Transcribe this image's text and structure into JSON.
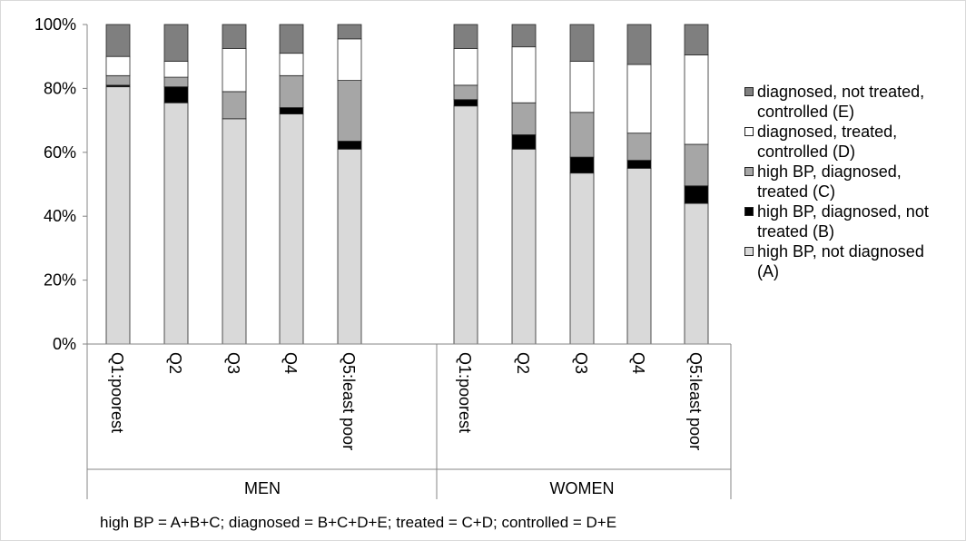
{
  "chart_data": {
    "type": "bar",
    "stacked": true,
    "percent": true,
    "ylim": [
      0,
      100
    ],
    "yticks": [
      "0%",
      "20%",
      "40%",
      "60%",
      "80%",
      "100%"
    ],
    "groups": [
      {
        "name": "MEN",
        "categories": [
          "Q1:poorest",
          "Q2",
          "Q3",
          "Q4",
          "Q5:least poor"
        ]
      },
      {
        "name": "WOMEN",
        "categories": [
          "Q1:poorest",
          "Q2",
          "Q3",
          "Q4",
          "Q5:least poor"
        ]
      }
    ],
    "series": [
      {
        "name": "high BP, not diagnosed (A)",
        "color": "#d9d9d9",
        "values": [
          80.5,
          75.5,
          70.5,
          72,
          61,
          74.5,
          61,
          53.5,
          55,
          44
        ]
      },
      {
        "name": "high BP, diagnosed, not treated (B)",
        "color": "#000000",
        "values": [
          0.5,
          5,
          0,
          2,
          2.5,
          2,
          4.5,
          5,
          2.5,
          5.5
        ]
      },
      {
        "name": "high BP, diagnosed, treated (C)",
        "color": "#a6a6a6",
        "values": [
          3,
          3,
          8.5,
          10,
          19,
          4.5,
          10,
          14,
          8.5,
          13
        ]
      },
      {
        "name": "diagnosed, treated, controlled (D)",
        "color": "#ffffff",
        "values": [
          6,
          5,
          13.5,
          7,
          13,
          11.5,
          17.5,
          16,
          21.5,
          28
        ]
      },
      {
        "name": "diagnosed, not treated, controlled (E)",
        "color": "#7f7f7f",
        "values": [
          10,
          11.5,
          7.5,
          9,
          4.5,
          7.5,
          7,
          11.5,
          12.5,
          9.5
        ]
      }
    ],
    "legend": [
      {
        "line1": "diagnosed, not treated,",
        "line2": "controlled (E)",
        "color": "#7f7f7f"
      },
      {
        "line1": "diagnosed, treated,",
        "line2": "controlled (D)",
        "color": "#ffffff"
      },
      {
        "line1": "high BP, diagnosed,",
        "line2": "treated (C)",
        "color": "#a6a6a6"
      },
      {
        "line1": "high BP, diagnosed, not",
        "line2": "treated (B)",
        "color": "#000000"
      },
      {
        "line1": "high BP, not diagnosed",
        "line2": "(A)",
        "color": "#d9d9d9"
      }
    ],
    "legend_position": "right",
    "footnote": "high BP = A+B+C; diagnosed = B+C+D+E; treated = C+D; controlled = D+E"
  }
}
